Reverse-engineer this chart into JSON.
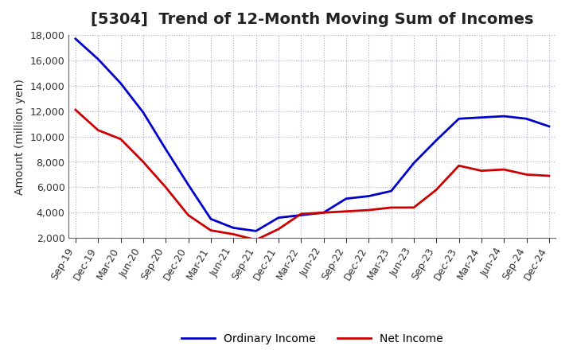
{
  "title": "[5304]  Trend of 12-Month Moving Sum of Incomes",
  "ylabel": "Amount (million yen)",
  "background_color": "#ffffff",
  "plot_bg_color": "#ffffff",
  "grid_color": "#aaaacc",
  "ordinary_income_color": "#0000cc",
  "net_income_color": "#cc0000",
  "x_labels": [
    "Sep-19",
    "Dec-19",
    "Mar-20",
    "Jun-20",
    "Sep-20",
    "Dec-20",
    "Mar-21",
    "Jun-21",
    "Sep-21",
    "Dec-21",
    "Mar-22",
    "Jun-22",
    "Sep-22",
    "Dec-22",
    "Mar-23",
    "Jun-23",
    "Sep-23",
    "Dec-23",
    "Mar-24",
    "Jun-24",
    "Sep-24",
    "Dec-24"
  ],
  "ordinary_income": [
    17700,
    16100,
    14200,
    11900,
    9000,
    6200,
    3500,
    2800,
    2550,
    3600,
    3800,
    4000,
    5100,
    5300,
    5700,
    7900,
    9700,
    11400,
    11500,
    11600,
    11400,
    10800
  ],
  "net_income": [
    12100,
    10500,
    9800,
    8000,
    6000,
    3800,
    2600,
    2300,
    1850,
    2700,
    3900,
    4000,
    4100,
    4200,
    4400,
    4400,
    5800,
    7700,
    7300,
    7400,
    7000,
    6900
  ],
  "ylim": [
    2000,
    18000
  ],
  "yticks": [
    2000,
    4000,
    6000,
    8000,
    10000,
    12000,
    14000,
    16000,
    18000
  ],
  "title_fontsize": 14,
  "legend_fontsize": 10,
  "tick_fontsize": 9,
  "ylabel_fontsize": 10
}
